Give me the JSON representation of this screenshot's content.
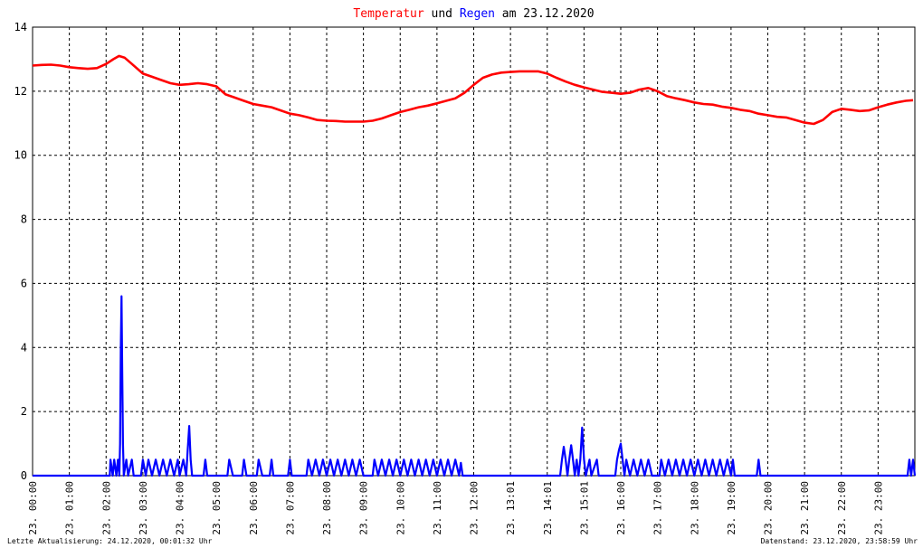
{
  "chart_data": {
    "type": "line",
    "title": {
      "parts": [
        {
          "text": "Temperatur",
          "color": "#ff0000"
        },
        {
          "text": " und ",
          "color": "#000000"
        },
        {
          "text": "Regen",
          "color": "#0000ff"
        },
        {
          "text": " am 23.12.2020",
          "color": "#000000"
        }
      ]
    },
    "ylim": [
      0,
      14
    ],
    "y_ticks": [
      "0",
      "2",
      "4",
      "6",
      "8",
      "10",
      "12",
      "14"
    ],
    "x_range_hours": [
      0,
      24
    ],
    "x_ticks": [
      {
        "hour": 0.0,
        "label": "23. 00:00"
      },
      {
        "hour": 1.0,
        "label": "23. 01:00"
      },
      {
        "hour": 2.0,
        "label": "23. 02:00"
      },
      {
        "hour": 3.0,
        "label": "23. 03:00"
      },
      {
        "hour": 4.0,
        "label": "23. 04:00"
      },
      {
        "hour": 5.0,
        "label": "23. 05:00"
      },
      {
        "hour": 6.0,
        "label": "23. 06:00"
      },
      {
        "hour": 7.0,
        "label": "23. 07:00"
      },
      {
        "hour": 8.0,
        "label": "23. 08:00"
      },
      {
        "hour": 9.0,
        "label": "23. 09:00"
      },
      {
        "hour": 10.0,
        "label": "23. 10:00"
      },
      {
        "hour": 11.0,
        "label": "23. 11:00"
      },
      {
        "hour": 12.0,
        "label": "23. 12:00"
      },
      {
        "hour": 13.0,
        "label": "23. 13:01"
      },
      {
        "hour": 14.0,
        "label": "23. 14:01"
      },
      {
        "hour": 15.0,
        "label": "23. 15:01"
      },
      {
        "hour": 16.0,
        "label": "23. 16:00"
      },
      {
        "hour": 17.0,
        "label": "23. 17:00"
      },
      {
        "hour": 18.0,
        "label": "23. 18:00"
      },
      {
        "hour": 19.0,
        "label": "23. 19:00"
      },
      {
        "hour": 20.0,
        "label": "23. 20:00"
      },
      {
        "hour": 21.0,
        "label": "23. 21:00"
      },
      {
        "hour": 22.0,
        "label": "23. 22:00"
      },
      {
        "hour": 23.0,
        "label": "23. 23:00"
      }
    ],
    "grid": true,
    "series": [
      {
        "name": "Temperatur",
        "color": "#ff0000",
        "kind": "line",
        "points": [
          [
            0.0,
            12.8
          ],
          [
            0.25,
            12.82
          ],
          [
            0.5,
            12.83
          ],
          [
            0.75,
            12.8
          ],
          [
            1.0,
            12.75
          ],
          [
            1.25,
            12.72
          ],
          [
            1.5,
            12.7
          ],
          [
            1.75,
            12.72
          ],
          [
            2.0,
            12.85
          ],
          [
            2.2,
            13.0
          ],
          [
            2.35,
            13.1
          ],
          [
            2.5,
            13.05
          ],
          [
            2.7,
            12.85
          ],
          [
            3.0,
            12.55
          ],
          [
            3.25,
            12.45
          ],
          [
            3.5,
            12.35
          ],
          [
            3.75,
            12.25
          ],
          [
            4.0,
            12.2
          ],
          [
            4.25,
            12.22
          ],
          [
            4.5,
            12.25
          ],
          [
            4.75,
            12.22
          ],
          [
            5.0,
            12.15
          ],
          [
            5.25,
            11.9
          ],
          [
            5.5,
            11.8
          ],
          [
            5.75,
            11.7
          ],
          [
            6.0,
            11.6
          ],
          [
            6.25,
            11.55
          ],
          [
            6.5,
            11.5
          ],
          [
            6.75,
            11.4
          ],
          [
            7.0,
            11.3
          ],
          [
            7.25,
            11.25
          ],
          [
            7.5,
            11.18
          ],
          [
            7.75,
            11.1
          ],
          [
            8.0,
            11.08
          ],
          [
            8.25,
            11.07
          ],
          [
            8.5,
            11.05
          ],
          [
            8.75,
            11.05
          ],
          [
            9.0,
            11.05
          ],
          [
            9.25,
            11.08
          ],
          [
            9.5,
            11.15
          ],
          [
            9.75,
            11.25
          ],
          [
            10.0,
            11.35
          ],
          [
            10.25,
            11.42
          ],
          [
            10.5,
            11.5
          ],
          [
            10.75,
            11.55
          ],
          [
            11.0,
            11.62
          ],
          [
            11.25,
            11.7
          ],
          [
            11.5,
            11.78
          ],
          [
            11.75,
            11.95
          ],
          [
            12.0,
            12.2
          ],
          [
            12.25,
            12.42
          ],
          [
            12.5,
            12.52
          ],
          [
            12.75,
            12.58
          ],
          [
            13.0,
            12.6
          ],
          [
            13.25,
            12.62
          ],
          [
            13.5,
            12.62
          ],
          [
            13.75,
            12.62
          ],
          [
            14.0,
            12.55
          ],
          [
            14.25,
            12.42
          ],
          [
            14.5,
            12.3
          ],
          [
            14.75,
            12.2
          ],
          [
            15.0,
            12.12
          ],
          [
            15.25,
            12.05
          ],
          [
            15.5,
            11.98
          ],
          [
            15.75,
            11.95
          ],
          [
            16.0,
            11.92
          ],
          [
            16.25,
            11.95
          ],
          [
            16.5,
            12.05
          ],
          [
            16.75,
            12.1
          ],
          [
            17.0,
            12.0
          ],
          [
            17.25,
            11.85
          ],
          [
            17.5,
            11.78
          ],
          [
            17.75,
            11.72
          ],
          [
            18.0,
            11.65
          ],
          [
            18.25,
            11.6
          ],
          [
            18.5,
            11.58
          ],
          [
            18.75,
            11.52
          ],
          [
            19.0,
            11.48
          ],
          [
            19.25,
            11.42
          ],
          [
            19.5,
            11.38
          ],
          [
            19.75,
            11.3
          ],
          [
            20.0,
            11.25
          ],
          [
            20.25,
            11.2
          ],
          [
            20.5,
            11.18
          ],
          [
            20.75,
            11.1
          ],
          [
            21.0,
            11.02
          ],
          [
            21.25,
            10.98
          ],
          [
            21.5,
            11.1
          ],
          [
            21.75,
            11.35
          ],
          [
            22.0,
            11.45
          ],
          [
            22.25,
            11.42
          ],
          [
            22.5,
            11.38
          ],
          [
            22.75,
            11.4
          ],
          [
            23.0,
            11.5
          ],
          [
            23.25,
            11.58
          ],
          [
            23.5,
            11.65
          ],
          [
            23.75,
            11.7
          ],
          [
            23.95,
            11.72
          ]
        ]
      },
      {
        "name": "Regen",
        "color": "#0000ff",
        "kind": "line",
        "points": [
          [
            0.0,
            0.0
          ],
          [
            2.1,
            0.0
          ],
          [
            2.12,
            0.5
          ],
          [
            2.18,
            0.0
          ],
          [
            2.22,
            0.5
          ],
          [
            2.28,
            0.0
          ],
          [
            2.32,
            0.5
          ],
          [
            2.36,
            0.0
          ],
          [
            2.38,
            1.0
          ],
          [
            2.4,
            4.0
          ],
          [
            2.42,
            5.6
          ],
          [
            2.44,
            3.2
          ],
          [
            2.46,
            1.0
          ],
          [
            2.48,
            0.0
          ],
          [
            2.55,
            0.5
          ],
          [
            2.6,
            0.0
          ],
          [
            2.7,
            0.5
          ],
          [
            2.75,
            0.0
          ],
          [
            2.95,
            0.0
          ],
          [
            3.0,
            0.5
          ],
          [
            3.08,
            0.0
          ],
          [
            3.15,
            0.5
          ],
          [
            3.25,
            0.0
          ],
          [
            3.35,
            0.5
          ],
          [
            3.45,
            0.0
          ],
          [
            3.55,
            0.5
          ],
          [
            3.65,
            0.0
          ],
          [
            3.75,
            0.5
          ],
          [
            3.85,
            0.0
          ],
          [
            3.95,
            0.5
          ],
          [
            4.0,
            0.0
          ],
          [
            4.1,
            0.5
          ],
          [
            4.18,
            0.0
          ],
          [
            4.22,
            0.8
          ],
          [
            4.26,
            1.55
          ],
          [
            4.3,
            0.5
          ],
          [
            4.34,
            0.0
          ],
          [
            4.65,
            0.0
          ],
          [
            4.7,
            0.5
          ],
          [
            4.75,
            0.0
          ],
          [
            5.3,
            0.0
          ],
          [
            5.35,
            0.5
          ],
          [
            5.45,
            0.0
          ],
          [
            5.7,
            0.0
          ],
          [
            5.75,
            0.5
          ],
          [
            5.82,
            0.0
          ],
          [
            6.1,
            0.0
          ],
          [
            6.15,
            0.5
          ],
          [
            6.25,
            0.0
          ],
          [
            6.45,
            0.0
          ],
          [
            6.5,
            0.5
          ],
          [
            6.55,
            0.0
          ],
          [
            6.95,
            0.0
          ],
          [
            7.0,
            0.5
          ],
          [
            7.05,
            0.0
          ],
          [
            7.45,
            0.0
          ],
          [
            7.5,
            0.5
          ],
          [
            7.6,
            0.0
          ],
          [
            7.7,
            0.5
          ],
          [
            7.8,
            0.0
          ],
          [
            7.9,
            0.5
          ],
          [
            8.0,
            0.0
          ],
          [
            8.1,
            0.5
          ],
          [
            8.2,
            0.0
          ],
          [
            8.3,
            0.5
          ],
          [
            8.4,
            0.0
          ],
          [
            8.5,
            0.5
          ],
          [
            8.6,
            0.0
          ],
          [
            8.7,
            0.5
          ],
          [
            8.8,
            0.0
          ],
          [
            8.9,
            0.5
          ],
          [
            9.0,
            0.0
          ],
          [
            9.25,
            0.0
          ],
          [
            9.3,
            0.5
          ],
          [
            9.4,
            0.0
          ],
          [
            9.5,
            0.5
          ],
          [
            9.6,
            0.0
          ],
          [
            9.7,
            0.5
          ],
          [
            9.8,
            0.0
          ],
          [
            9.9,
            0.5
          ],
          [
            10.0,
            0.0
          ],
          [
            10.1,
            0.5
          ],
          [
            10.2,
            0.0
          ],
          [
            10.3,
            0.5
          ],
          [
            10.4,
            0.0
          ],
          [
            10.5,
            0.5
          ],
          [
            10.6,
            0.0
          ],
          [
            10.7,
            0.5
          ],
          [
            10.8,
            0.0
          ],
          [
            10.9,
            0.5
          ],
          [
            11.0,
            0.0
          ],
          [
            11.1,
            0.5
          ],
          [
            11.2,
            0.0
          ],
          [
            11.3,
            0.5
          ],
          [
            11.4,
            0.0
          ],
          [
            11.5,
            0.5
          ],
          [
            11.6,
            0.0
          ],
          [
            11.65,
            0.4
          ],
          [
            11.7,
            0.0
          ],
          [
            14.35,
            0.0
          ],
          [
            14.4,
            0.5
          ],
          [
            14.45,
            0.9
          ],
          [
            14.5,
            0.5
          ],
          [
            14.55,
            0.0
          ],
          [
            14.6,
            0.5
          ],
          [
            14.65,
            0.95
          ],
          [
            14.7,
            0.5
          ],
          [
            14.75,
            0.0
          ],
          [
            14.8,
            0.5
          ],
          [
            14.85,
            0.0
          ],
          [
            14.9,
            0.5
          ],
          [
            14.95,
            1.5
          ],
          [
            15.0,
            0.5
          ],
          [
            15.05,
            0.0
          ],
          [
            15.15,
            0.5
          ],
          [
            15.2,
            0.0
          ],
          [
            15.35,
            0.5
          ],
          [
            15.4,
            0.0
          ],
          [
            15.85,
            0.0
          ],
          [
            15.9,
            0.5
          ],
          [
            15.95,
            0.8
          ],
          [
            16.0,
            1.0
          ],
          [
            16.05,
            0.5
          ],
          [
            16.1,
            0.0
          ],
          [
            16.15,
            0.5
          ],
          [
            16.25,
            0.0
          ],
          [
            16.35,
            0.5
          ],
          [
            16.45,
            0.0
          ],
          [
            16.55,
            0.5
          ],
          [
            16.65,
            0.0
          ],
          [
            16.75,
            0.5
          ],
          [
            16.85,
            0.0
          ],
          [
            17.05,
            0.0
          ],
          [
            17.1,
            0.5
          ],
          [
            17.2,
            0.0
          ],
          [
            17.3,
            0.5
          ],
          [
            17.4,
            0.0
          ],
          [
            17.5,
            0.5
          ],
          [
            17.6,
            0.0
          ],
          [
            17.7,
            0.5
          ],
          [
            17.8,
            0.0
          ],
          [
            17.9,
            0.5
          ],
          [
            18.0,
            0.0
          ],
          [
            18.1,
            0.5
          ],
          [
            18.2,
            0.0
          ],
          [
            18.3,
            0.5
          ],
          [
            18.4,
            0.0
          ],
          [
            18.5,
            0.5
          ],
          [
            18.6,
            0.0
          ],
          [
            18.7,
            0.5
          ],
          [
            18.8,
            0.0
          ],
          [
            18.9,
            0.5
          ],
          [
            19.0,
            0.0
          ],
          [
            19.05,
            0.5
          ],
          [
            19.1,
            0.0
          ],
          [
            19.7,
            0.0
          ],
          [
            19.75,
            0.5
          ],
          [
            19.8,
            0.0
          ],
          [
            23.8,
            0.0
          ],
          [
            23.85,
            0.5
          ],
          [
            23.9,
            0.0
          ],
          [
            23.95,
            0.5
          ],
          [
            24.0,
            0.0
          ]
        ]
      }
    ]
  },
  "footer": {
    "left": "Letzte Aktualisierung: 24.12.2020, 00:01:32 Uhr",
    "right": "Datenstand: 23.12.2020, 23:58:59 Uhr"
  }
}
